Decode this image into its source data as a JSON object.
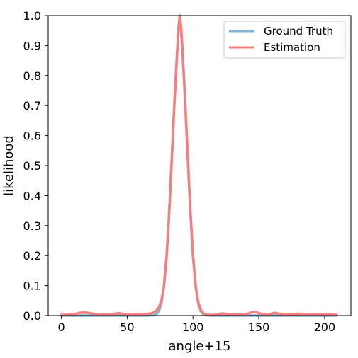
{
  "chart_data": {
    "type": "line",
    "title": "",
    "xlabel": "angle+15",
    "ylabel": "likelihood",
    "xlim": [
      -10,
      220
    ],
    "ylim": [
      0,
      1.0
    ],
    "x_ticks": [
      0,
      50,
      100,
      150,
      200
    ],
    "x_tick_labels": [
      "0",
      "50",
      "100",
      "150",
      "200"
    ],
    "y_ticks": [
      0,
      0.1,
      0.2,
      0.3,
      0.4,
      0.5,
      0.6,
      0.7,
      0.8,
      0.9,
      1.0
    ],
    "y_tick_labels": [
      "0.0",
      "0.1",
      "0.2",
      "0.3",
      "0.4",
      "0.5",
      "0.6",
      "0.7",
      "0.8",
      "0.9",
      "1.0"
    ],
    "legend_position": "top-right",
    "grid": false,
    "series": [
      {
        "name": "Ground Truth",
        "color": "#7fb5d9",
        "x": [
          0,
          10,
          20,
          30,
          40,
          50,
          60,
          65,
          70,
          72,
          74,
          76,
          78,
          80,
          82,
          84,
          86,
          88,
          89,
          90,
          91,
          92,
          94,
          96,
          98,
          100,
          102,
          104,
          106,
          108,
          110,
          115,
          120,
          130,
          140,
          150,
          160,
          170,
          180,
          190,
          200,
          209
        ],
        "values": [
          0,
          0,
          0,
          0,
          0,
          0,
          0,
          0,
          0.001,
          0.004,
          0.014,
          0.04,
          0.1,
          0.2,
          0.35,
          0.53,
          0.72,
          0.88,
          0.95,
          1.0,
          0.95,
          0.88,
          0.72,
          0.53,
          0.35,
          0.2,
          0.1,
          0.04,
          0.014,
          0.004,
          0.001,
          0,
          0,
          0,
          0,
          0,
          0,
          0,
          0,
          0,
          0,
          0
        ]
      },
      {
        "name": "Estimation",
        "color": "#f47f7f",
        "x": [
          0,
          5,
          10,
          14,
          18,
          22,
          26,
          30,
          35,
          40,
          44,
          48,
          52,
          56,
          60,
          64,
          68,
          70,
          72,
          74,
          76,
          78,
          80,
          82,
          84,
          86,
          88,
          89,
          90,
          91,
          92,
          94,
          96,
          98,
          100,
          102,
          104,
          106,
          108,
          110,
          114,
          118,
          122,
          126,
          130,
          135,
          140,
          144,
          147,
          150,
          154,
          158,
          162,
          166,
          170,
          175,
          180,
          185,
          190,
          195,
          200,
          205,
          209
        ],
        "values": [
          0.002,
          0.003,
          0.005,
          0.009,
          0.01,
          0.008,
          0.004,
          0.003,
          0.003,
          0.006,
          0.008,
          0.004,
          0.003,
          0.005,
          0.004,
          0.005,
          0.007,
          0.01,
          0.015,
          0.028,
          0.05,
          0.1,
          0.2,
          0.35,
          0.53,
          0.72,
          0.88,
          0.96,
          1.0,
          0.96,
          0.89,
          0.72,
          0.53,
          0.35,
          0.2,
          0.1,
          0.045,
          0.018,
          0.007,
          0.003,
          0.002,
          0.003,
          0.007,
          0.005,
          0.003,
          0.003,
          0.004,
          0.01,
          0.012,
          0.008,
          0.003,
          0.004,
          0.009,
          0.006,
          0.004,
          0.005,
          0.006,
          0.004,
          0.003,
          0.004,
          0.003,
          0.004,
          0.002
        ]
      }
    ]
  }
}
